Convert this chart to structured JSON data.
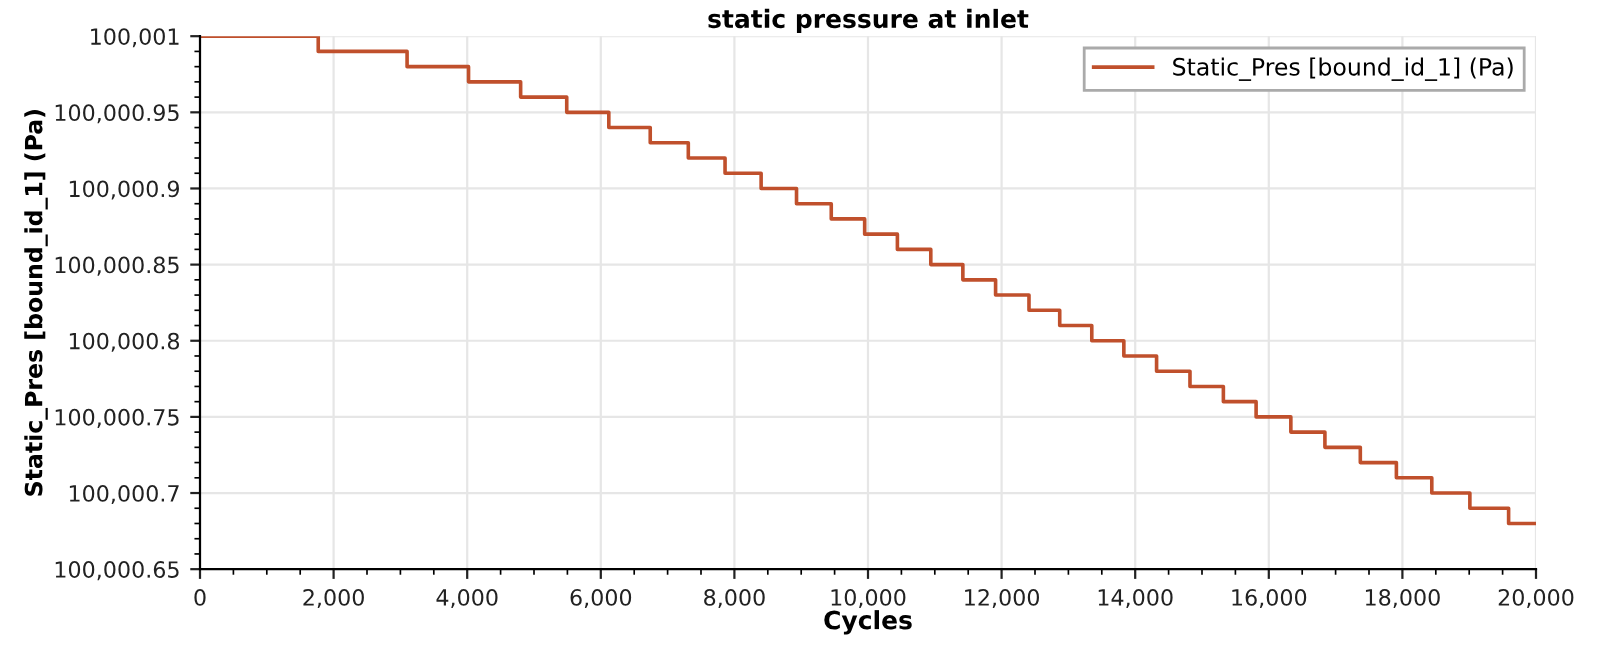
{
  "chart_data": {
    "type": "step",
    "title": "static pressure at inlet",
    "xlabel": "Cycles",
    "ylabel": "Static_Pres [bound_id_1] (Pa)",
    "series": [
      {
        "name": "Static_Pres [bound_id_1] (Pa)",
        "color": "#c0502c",
        "x": [
          0,
          1770,
          3100,
          4020,
          4800,
          5490,
          6120,
          6740,
          7310,
          7860,
          8400,
          8930,
          9450,
          9950,
          10440,
          10940,
          11420,
          11910,
          12410,
          12870,
          13350,
          13830,
          14320,
          14820,
          15320,
          15810,
          16330,
          16840,
          17370,
          17910,
          18440,
          19010,
          19590,
          20000
        ],
        "values": [
          100001.0,
          100000.99,
          100000.98,
          100000.97,
          100000.96,
          100000.95,
          100000.94,
          100000.93,
          100000.92,
          100000.91,
          100000.9,
          100000.89,
          100000.88,
          100000.87,
          100000.86,
          100000.85,
          100000.84,
          100000.83,
          100000.82,
          100000.81,
          100000.8,
          100000.79,
          100000.78,
          100000.77,
          100000.76,
          100000.75,
          100000.74,
          100000.73,
          100000.72,
          100000.71,
          100000.7,
          100000.69,
          100000.68,
          100000.68
        ]
      }
    ],
    "xlim": [
      0,
      20000
    ],
    "xticks": [
      0,
      {
        "value": 2000,
        "label": "2,000"
      },
      {
        "value": 4000,
        "label": "4,000"
      },
      {
        "value": 6000,
        "label": "6,000"
      },
      {
        "value": 8000,
        "label": "8,000"
      },
      {
        "value": 10000,
        "label": "10,000"
      },
      {
        "value": 12000,
        "label": "12,000"
      },
      {
        "value": 14000,
        "label": "14,000"
      },
      {
        "value": 16000,
        "label": "16,000"
      },
      {
        "value": 18000,
        "label": "18,000"
      },
      {
        "value": 20000,
        "label": "20,000"
      }
    ],
    "ylim": [
      100000.65,
      100001.0
    ],
    "yticks": [
      {
        "value": 100000.65,
        "label": "100,000.65"
      },
      {
        "value": 100000.7,
        "label": "100,000.7"
      },
      {
        "value": 100000.75,
        "label": "100,000.75"
      },
      {
        "value": 100000.8,
        "label": "100,000.8"
      },
      {
        "value": 100000.85,
        "label": "100,000.85"
      },
      {
        "value": 100000.9,
        "label": "100,000.9"
      },
      {
        "value": 100000.95,
        "label": "100,000.95"
      },
      {
        "value": 100001.0,
        "label": "100,001"
      }
    ],
    "grid": true,
    "legend": "top right",
    "marker": "none",
    "line_style": "solid"
  }
}
